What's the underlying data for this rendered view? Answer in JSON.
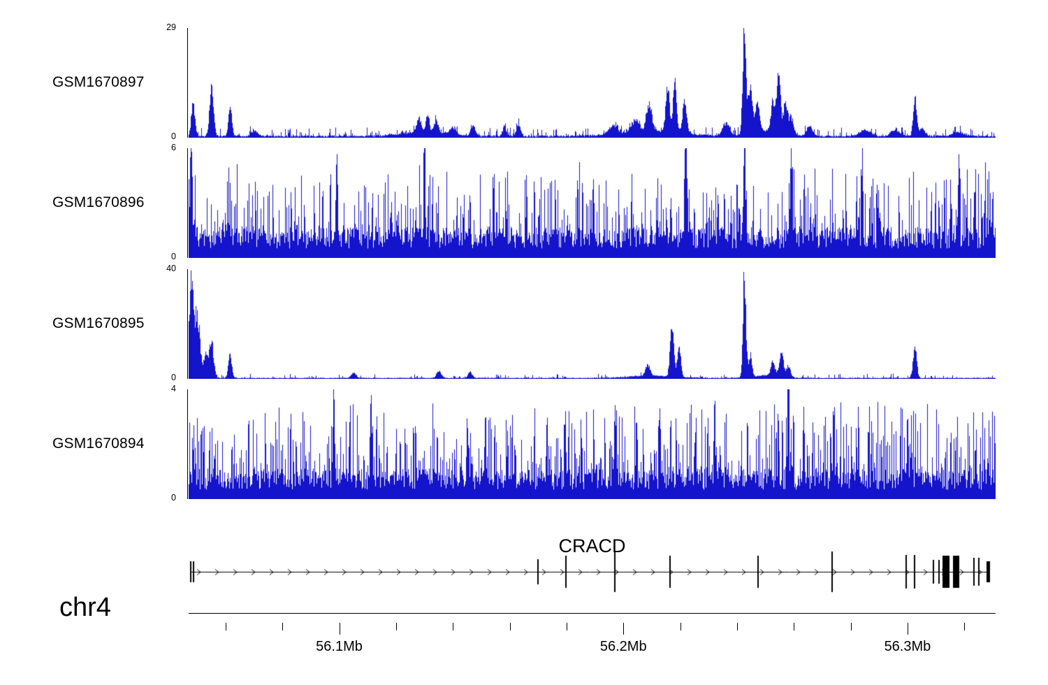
{
  "chart_data": {
    "type": "area",
    "description": "Genome browser read-coverage tracks over the CRACD locus",
    "x_range_mb": [
      56.047,
      56.331
    ],
    "color": "#1414cc",
    "x_axis": {
      "chromosome": "chr4",
      "unit": "Mb",
      "major_ticks": [
        {
          "mb": 56.1,
          "label": "56.1Mb"
        },
        {
          "mb": 56.2,
          "label": "56.2Mb"
        },
        {
          "mb": 56.3,
          "label": "56.3Mb"
        }
      ],
      "minor_ticks_mb": [
        56.06,
        56.08,
        56.12,
        56.14,
        56.16,
        56.18,
        56.22,
        56.24,
        56.26,
        56.28,
        56.32
      ]
    },
    "tracks": [
      {
        "name": "GSM1670897",
        "ymin": 0,
        "ymax": 29,
        "seed": 42,
        "peaks": [
          [
            56.0485,
            9,
            0.6
          ],
          [
            56.055,
            12,
            0.7
          ],
          [
            56.0615,
            7.5,
            0.6
          ],
          [
            56.07,
            1.5,
            1
          ],
          [
            56.128,
            3.5,
            0.8
          ],
          [
            56.131,
            4.5,
            0.6
          ],
          [
            56.134,
            3,
            0.7
          ],
          [
            56.14,
            1.8,
            1
          ],
          [
            56.147,
            2.5,
            0.8
          ],
          [
            56.158,
            2.6,
            0.6
          ],
          [
            56.163,
            3,
            0.7
          ],
          [
            56.13,
            1,
            8
          ],
          [
            56.196,
            2,
            1.5
          ],
          [
            56.204,
            3,
            1.2
          ],
          [
            56.209,
            6.5,
            0.9
          ],
          [
            56.2155,
            10.5,
            0.7
          ],
          [
            56.218,
            13,
            0.6
          ],
          [
            56.2215,
            8.5,
            0.7
          ],
          [
            56.21,
            1.5,
            10
          ],
          [
            56.236,
            3,
            1.2
          ],
          [
            56.2425,
            29,
            0.55
          ],
          [
            56.2445,
            11,
            0.7
          ],
          [
            56.247,
            7,
            0.8
          ],
          [
            56.2525,
            7.5,
            0.7
          ],
          [
            56.2545,
            14,
            0.7
          ],
          [
            56.257,
            8,
            0.7
          ],
          [
            56.259,
            4.5,
            0.7
          ],
          [
            56.2655,
            2.5,
            1
          ],
          [
            56.25,
            1.5,
            6
          ],
          [
            56.285,
            1.5,
            2
          ],
          [
            56.2955,
            1.5,
            1.5
          ],
          [
            56.3025,
            9.5,
            0.6
          ],
          [
            56.305,
            2,
            1
          ],
          [
            56.318,
            1,
            2
          ]
        ],
        "noise": {
          "base": 0.5,
          "spike_p": 0.3,
          "spike_max": 2.2,
          "pow": 2.2
        }
      },
      {
        "name": "GSM1670896",
        "ymin": 0,
        "ymax": 6,
        "seed": 7,
        "peaks": [
          [
            56.0478,
            5,
            0.35
          ],
          [
            56.099,
            4.6,
            0.3
          ],
          [
            56.13,
            4.4,
            0.25
          ],
          [
            56.222,
            4.8,
            0.3
          ],
          [
            56.2425,
            6,
            0.35
          ],
          [
            56.259,
            5,
            0.3
          ],
          [
            56.284,
            4.5,
            0.25
          ],
          [
            56.318,
            4.6,
            0.25
          ]
        ],
        "noise": {
          "base": 1.3,
          "spike_p": 0.45,
          "spike_max": 3.6,
          "pow": 1.6
        }
      },
      {
        "name": "GSM1670895",
        "ymin": 0,
        "ymax": 40,
        "seed": 13,
        "peaks": [
          [
            56.0478,
            36,
            0.8
          ],
          [
            56.05,
            22,
            0.9
          ],
          [
            56.053,
            8,
            0.8
          ],
          [
            56.055,
            13,
            0.7
          ],
          [
            56.0615,
            8.5,
            0.6
          ],
          [
            56.105,
            2,
            0.8
          ],
          [
            56.135,
            2.5,
            0.8
          ],
          [
            56.146,
            2,
            0.8
          ],
          [
            56.2085,
            4,
            0.8
          ],
          [
            56.217,
            20,
            0.6
          ],
          [
            56.2195,
            12,
            0.6
          ],
          [
            56.2425,
            39,
            0.5
          ],
          [
            56.2445,
            8,
            0.6
          ],
          [
            56.2525,
            5.5,
            0.7
          ],
          [
            56.2555,
            9.5,
            0.7
          ],
          [
            56.258,
            4,
            0.7
          ],
          [
            56.3025,
            12,
            0.6
          ],
          [
            56.21,
            0.8,
            8
          ],
          [
            56.25,
            0.9,
            5
          ]
        ],
        "noise": {
          "base": 0.35,
          "spike_p": 0.18,
          "spike_max": 1.6,
          "pow": 2.2
        }
      },
      {
        "name": "GSM1670894",
        "ymin": 0,
        "ymax": 4,
        "seed": 99,
        "peaks": [
          [
            56.098,
            3.4,
            0.3
          ],
          [
            56.111,
            2.9,
            0.25
          ],
          [
            56.197,
            3,
            0.3
          ],
          [
            56.232,
            2.8,
            0.25
          ],
          [
            56.258,
            2.9,
            0.25
          ],
          [
            56.3,
            2.6,
            0.25
          ]
        ],
        "noise": {
          "base": 0.85,
          "spike_p": 0.5,
          "spike_max": 2.6,
          "pow": 1.5
        }
      }
    ],
    "gene": {
      "name": "CRACD",
      "strand": "+",
      "start_mb": 56.0475,
      "end_mb": 56.329,
      "exons": [
        [
          56.0478,
          2,
          30
        ],
        [
          56.0488,
          2,
          30
        ],
        [
          56.17,
          2,
          36
        ],
        [
          56.1797,
          2,
          46
        ],
        [
          56.197,
          2,
          58
        ],
        [
          56.2165,
          2,
          46
        ],
        [
          56.2475,
          2,
          46
        ],
        [
          56.2735,
          2,
          58
        ],
        [
          56.2995,
          2,
          48
        ],
        [
          56.3025,
          2,
          48
        ],
        [
          56.309,
          2,
          34
        ],
        [
          56.311,
          2,
          34
        ],
        [
          56.3135,
          10,
          46
        ],
        [
          56.317,
          9,
          46
        ],
        [
          56.3235,
          2,
          40
        ],
        [
          56.325,
          2,
          40
        ],
        [
          56.3283,
          5,
          30
        ]
      ]
    }
  }
}
